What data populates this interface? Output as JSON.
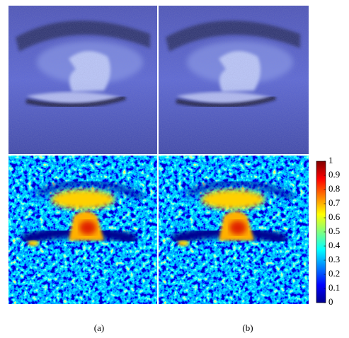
{
  "panels": [
    {
      "label": "(a)"
    },
    {
      "label": "(b)"
    }
  ],
  "colorbar": {
    "lim": [
      0,
      1
    ],
    "ticks": [
      0,
      0.1,
      0.2,
      0.3,
      0.4,
      0.5,
      0.6,
      0.7,
      0.8,
      0.9,
      1
    ]
  }
}
